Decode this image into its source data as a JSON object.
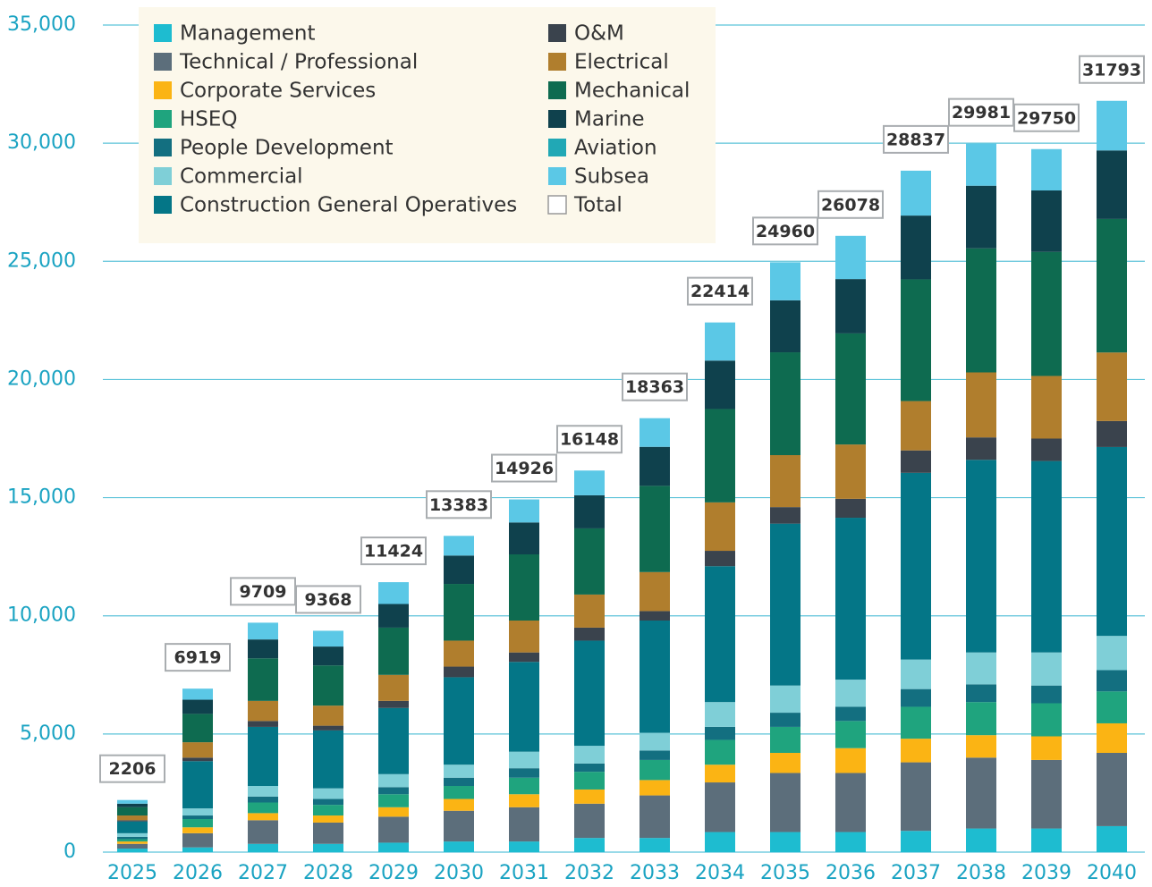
{
  "chart_data": {
    "type": "bar",
    "stacked": true,
    "categories": [
      "2025",
      "2026",
      "2027",
      "2028",
      "2029",
      "2030",
      "2031",
      "2032",
      "2033",
      "2034",
      "2035",
      "2036",
      "2037",
      "2038",
      "2039",
      "2040"
    ],
    "series": [
      {
        "name": "Management",
        "color": "#1ebcd0",
        "values": [
          150,
          200,
          350,
          350,
          400,
          450,
          450,
          600,
          600,
          850,
          850,
          850,
          900,
          1000,
          1000,
          1100
        ]
      },
      {
        "name": "Technical / Professional",
        "color": "#5c6e7b",
        "values": [
          200,
          600,
          1000,
          900,
          1100,
          1300,
          1450,
          1450,
          1800,
          2100,
          2500,
          2500,
          2900,
          3000,
          2900,
          3100
        ]
      },
      {
        "name": "Corporate Services",
        "color": "#fbb414",
        "values": [
          100,
          250,
          300,
          300,
          400,
          500,
          550,
          600,
          650,
          750,
          850,
          1050,
          1000,
          950,
          1000,
          1250
        ]
      },
      {
        "name": "HSEQ",
        "color": "#1fa47e",
        "values": [
          100,
          350,
          450,
          450,
          550,
          550,
          700,
          750,
          850,
          1050,
          1100,
          1150,
          1350,
          1400,
          1400,
          1350
        ]
      },
      {
        "name": "People Development",
        "color": "#136f80",
        "values": [
          100,
          150,
          250,
          250,
          300,
          350,
          400,
          350,
          400,
          550,
          600,
          600,
          750,
          750,
          750,
          900
        ]
      },
      {
        "name": "Commercial",
        "color": "#7fcfd7",
        "values": [
          150,
          300,
          450,
          450,
          550,
          550,
          700,
          750,
          750,
          1050,
          1150,
          1150,
          1250,
          1350,
          1400,
          1450
        ]
      },
      {
        "name": "Construction General Operatives",
        "color": "#047687",
        "values": [
          500,
          2000,
          2500,
          2450,
          2800,
          3700,
          3800,
          4450,
          4750,
          5750,
          6850,
          6850,
          7900,
          8150,
          8100,
          7993
        ]
      },
      {
        "name": "O&M",
        "color": "#3a434d",
        "values": [
          50,
          150,
          250,
          200,
          300,
          450,
          400,
          550,
          400,
          650,
          700,
          800,
          950,
          950,
          950,
          1100
        ]
      },
      {
        "name": "Electrical",
        "color": "#b07e2d",
        "values": [
          200,
          650,
          850,
          850,
          1100,
          1100,
          1350,
          1400,
          1650,
          2050,
          2200,
          2300,
          2087,
          2750,
          2650,
          2900
        ]
      },
      {
        "name": "Mechanical",
        "color": "#0e6b50",
        "values": [
          350,
          1200,
          1800,
          1700,
          2000,
          2400,
          2800,
          2800,
          3650,
          3950,
          4350,
          4700,
          5150,
          5250,
          5250,
          5650
        ]
      },
      {
        "name": "Marine",
        "color": "#0f414d",
        "values": [
          150,
          600,
          800,
          800,
          1000,
          1200,
          1350,
          1400,
          1650,
          2050,
          2200,
          2300,
          2700,
          2650,
          2600,
          2900
        ]
      },
      {
        "name": "Aviation",
        "color": "#21a8b5",
        "values": [
          0,
          0,
          0,
          0,
          0,
          0,
          0,
          0,
          0,
          0,
          0,
          0,
          0,
          0,
          0,
          0
        ]
      },
      {
        "name": "Subsea",
        "color": "#5bc8e6",
        "values": [
          156,
          469,
          709,
          668,
          924,
          833,
          976,
          1048,
          1213,
          1614,
          1610,
          1828,
          1900,
          1781,
          1750,
          2100
        ]
      }
    ],
    "total": {
      "name": "Total",
      "values": [
        2206,
        6919,
        9709,
        9368,
        11424,
        13383,
        14926,
        16148,
        18363,
        22414,
        24960,
        26078,
        28837,
        29981,
        29750,
        31793
      ]
    },
    "ylim": [
      0,
      35000
    ],
    "yticks": [
      0,
      {
        "value": 5000,
        "label": "5,000"
      },
      {
        "value": 10000,
        "label": "10,000"
      },
      {
        "value": 15000,
        "label": "15,000"
      },
      {
        "value": 20000,
        "label": "20,000"
      },
      {
        "value": 25000,
        "label": "25,000"
      },
      {
        "value": 30000,
        "label": "30,000"
      },
      {
        "value": 35000,
        "label": "35,000"
      }
    ],
    "grid": true,
    "legend": "top-left"
  }
}
